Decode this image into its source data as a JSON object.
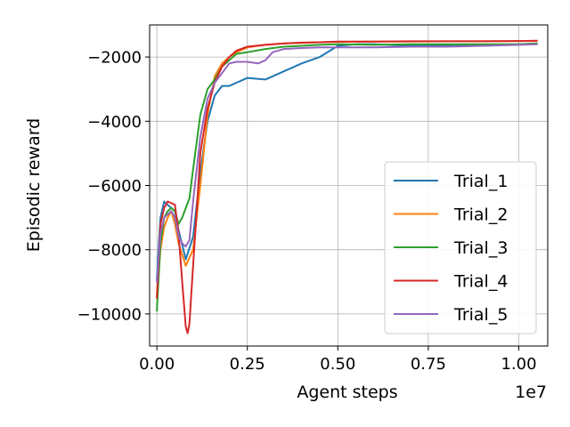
{
  "chart_data": {
    "type": "line",
    "title": "",
    "xlabel": "Agent steps",
    "ylabel": "Episodic reward",
    "x_offset_label": "1e7",
    "xlim": [
      -0.02,
      1.08
    ],
    "ylim": [
      -11000,
      -1000
    ],
    "x_ticks": [
      {
        "value": 0.0,
        "label": "0.00"
      },
      {
        "value": 0.25,
        "label": "0.25"
      },
      {
        "value": 0.5,
        "label": "0.50"
      },
      {
        "value": 0.75,
        "label": "0.75"
      },
      {
        "value": 1.0,
        "label": "1.00"
      }
    ],
    "y_ticks": [
      {
        "value": -2000,
        "label": "−2000"
      },
      {
        "value": -4000,
        "label": "−4000"
      },
      {
        "value": -6000,
        "label": "−6000"
      },
      {
        "value": -8000,
        "label": "−8000"
      },
      {
        "value": -10000,
        "label": "−10000"
      }
    ],
    "grid": true,
    "legend_position": "lower-right",
    "series": [
      {
        "name": "Trial_1",
        "color": "#1f77b4",
        "x": [
          0.0,
          0.01,
          0.02,
          0.03,
          0.04,
          0.05,
          0.06,
          0.08,
          0.1,
          0.12,
          0.14,
          0.16,
          0.18,
          0.2,
          0.22,
          0.25,
          0.3,
          0.35,
          0.4,
          0.45,
          0.5,
          0.55,
          0.6,
          0.7,
          0.8,
          0.9,
          1.0,
          1.05
        ],
        "y": [
          -8900,
          -7000,
          -6500,
          -6600,
          -6700,
          -6800,
          -7400,
          -8300,
          -7600,
          -5600,
          -4000,
          -3200,
          -2900,
          -2900,
          -2800,
          -2650,
          -2700,
          -2450,
          -2200,
          -2000,
          -1650,
          -1600,
          -1600,
          -1650,
          -1650,
          -1650,
          -1600,
          -1580
        ]
      },
      {
        "name": "Trial_2",
        "color": "#ff7f0e",
        "x": [
          0.0,
          0.01,
          0.02,
          0.03,
          0.04,
          0.05,
          0.06,
          0.08,
          0.1,
          0.12,
          0.14,
          0.16,
          0.18,
          0.2,
          0.22,
          0.25,
          0.3,
          0.35,
          0.4,
          0.45,
          0.5,
          0.6,
          0.7,
          0.8,
          0.9,
          1.0,
          1.05
        ],
        "y": [
          -9400,
          -8000,
          -7300,
          -7000,
          -6800,
          -7200,
          -7800,
          -8500,
          -8000,
          -6000,
          -3800,
          -2600,
          -2200,
          -2000,
          -1850,
          -1700,
          -1620,
          -1580,
          -1560,
          -1540,
          -1530,
          -1520,
          -1520,
          -1510,
          -1510,
          -1500,
          -1500
        ]
      },
      {
        "name": "Trial_3",
        "color": "#2ca02c",
        "x": [
          0.0,
          0.01,
          0.02,
          0.03,
          0.04,
          0.05,
          0.06,
          0.07,
          0.08,
          0.09,
          0.1,
          0.12,
          0.14,
          0.16,
          0.18,
          0.2,
          0.22,
          0.25,
          0.3,
          0.35,
          0.4,
          0.45,
          0.5,
          0.6,
          0.7,
          0.8,
          0.9,
          1.0,
          1.05
        ],
        "y": [
          -9900,
          -7800,
          -7000,
          -6800,
          -6700,
          -6800,
          -7200,
          -7000,
          -6700,
          -6400,
          -5500,
          -3800,
          -3000,
          -2700,
          -2300,
          -2100,
          -1900,
          -1850,
          -1750,
          -1680,
          -1650,
          -1620,
          -1600,
          -1620,
          -1600,
          -1600,
          -1600,
          -1600,
          -1580
        ]
      },
      {
        "name": "Trial_4",
        "color": "#d62728",
        "x": [
          0.0,
          0.01,
          0.02,
          0.03,
          0.04,
          0.05,
          0.06,
          0.07,
          0.08,
          0.085,
          0.09,
          0.1,
          0.11,
          0.12,
          0.14,
          0.16,
          0.18,
          0.2,
          0.22,
          0.25,
          0.3,
          0.35,
          0.4,
          0.45,
          0.5,
          0.6,
          0.7,
          0.8,
          0.9,
          1.0,
          1.05
        ],
        "y": [
          -9500,
          -7200,
          -6700,
          -6500,
          -6550,
          -6600,
          -7500,
          -9000,
          -10400,
          -10600,
          -10300,
          -8500,
          -6800,
          -5000,
          -3600,
          -2800,
          -2300,
          -2000,
          -1800,
          -1680,
          -1620,
          -1580,
          -1550,
          -1540,
          -1520,
          -1520,
          -1510,
          -1510,
          -1510,
          -1500,
          -1490
        ]
      },
      {
        "name": "Trial_5",
        "color": "#9467bd",
        "x": [
          0.0,
          0.01,
          0.02,
          0.03,
          0.04,
          0.05,
          0.06,
          0.07,
          0.08,
          0.09,
          0.1,
          0.12,
          0.14,
          0.16,
          0.18,
          0.2,
          0.22,
          0.25,
          0.28,
          0.3,
          0.32,
          0.35,
          0.4,
          0.45,
          0.5,
          0.6,
          0.7,
          0.8,
          0.9,
          1.0,
          1.05
        ],
        "y": [
          -9000,
          -7500,
          -7000,
          -6900,
          -6800,
          -7000,
          -7600,
          -7800,
          -7900,
          -7700,
          -6500,
          -4500,
          -3300,
          -2800,
          -2500,
          -2200,
          -2150,
          -2150,
          -2200,
          -2100,
          -1850,
          -1750,
          -1720,
          -1700,
          -1700,
          -1700,
          -1680,
          -1680,
          -1650,
          -1620,
          -1600
        ]
      }
    ]
  }
}
